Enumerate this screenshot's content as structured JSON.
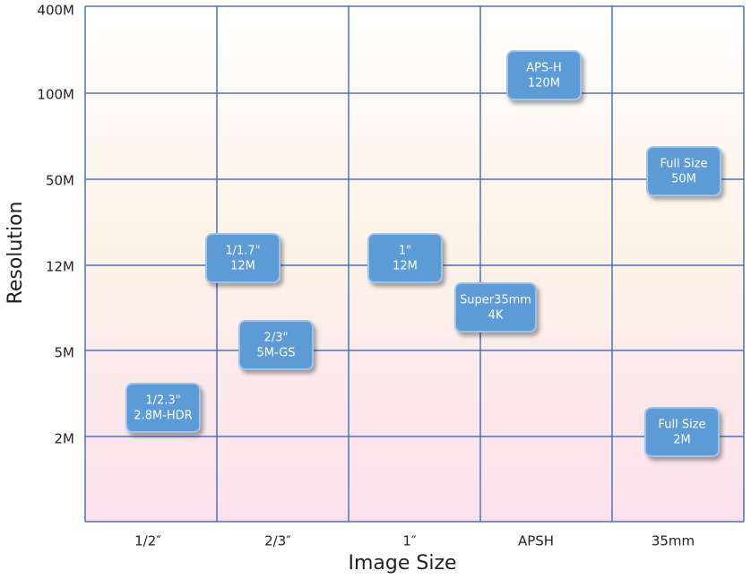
{
  "axes": {
    "x_title": "Image Size",
    "y_title": "Resolution",
    "x_labels": [
      "1/2″",
      "2/3″",
      "1″",
      "APSH",
      "35mm"
    ],
    "y_labels": [
      "400M",
      "100M",
      "50M",
      "12M",
      "5M",
      "2M"
    ]
  },
  "nodes": [
    {
      "line1": "APS-H",
      "line2": "120M"
    },
    {
      "line1": "Full Size",
      "line2": "50M"
    },
    {
      "line1": "1/1.7\"",
      "line2": "12M"
    },
    {
      "line1": "1\"",
      "line2": "12M"
    },
    {
      "line1": "Super35mm",
      "line2": "4K"
    },
    {
      "line1": "2/3\"",
      "line2": "5M-GS"
    },
    {
      "line1": "1/2.3\"",
      "line2": "2.8M-HDR"
    },
    {
      "line1": "Full Size",
      "line2": "2M"
    }
  ]
}
